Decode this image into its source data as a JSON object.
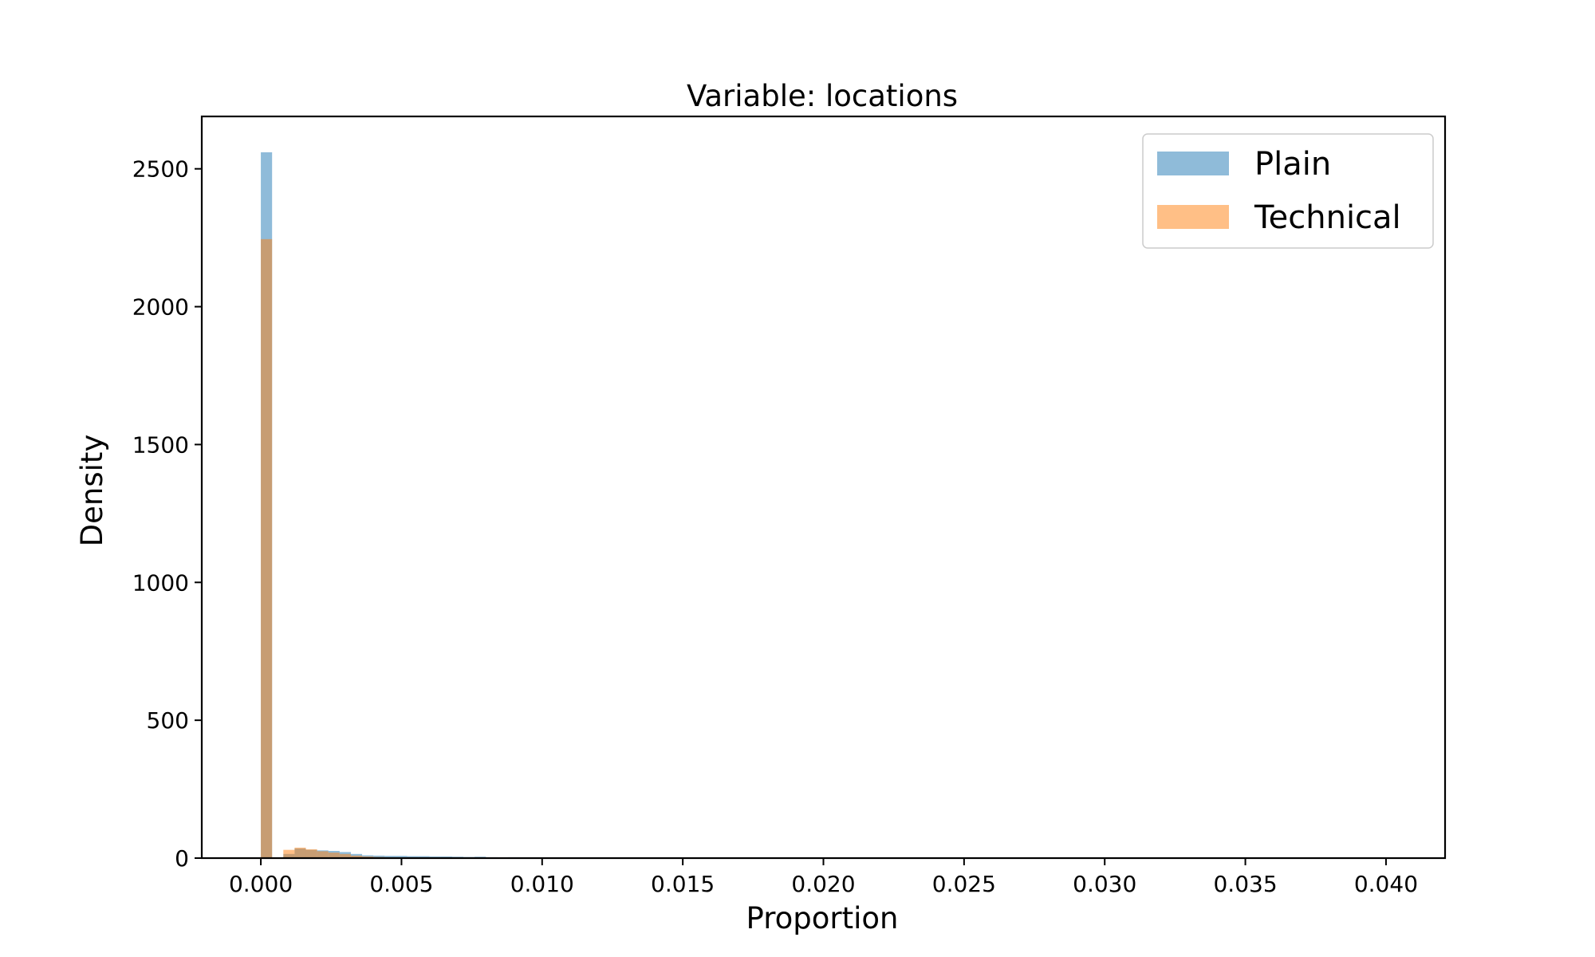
{
  "chart_data": {
    "type": "histogram",
    "title": "Variable: locations",
    "xlabel": "Proportion",
    "ylabel": "Density",
    "xlim": [
      -0.0021,
      0.0421
    ],
    "ylim": [
      0,
      2690
    ],
    "xticks": [
      0.0,
      0.005,
      0.01,
      0.015,
      0.02,
      0.025,
      0.03,
      0.035,
      0.04
    ],
    "xtick_labels": [
      "0.000",
      "0.005",
      "0.010",
      "0.015",
      "0.020",
      "0.025",
      "0.030",
      "0.035",
      "0.040"
    ],
    "yticks": [
      0,
      500,
      1000,
      1500,
      2000,
      2500
    ],
    "ytick_labels": [
      "0",
      "500",
      "1000",
      "1500",
      "2000",
      "2500"
    ],
    "grid": false,
    "legend_position": "top-right",
    "series": [
      {
        "name": "Plain",
        "color": "#1f77b4",
        "opacity": 0.5,
        "bins": [
          {
            "x0": 0.0,
            "x1": 0.0004,
            "value": 2560
          },
          {
            "x0": 0.0004,
            "x1": 0.0008,
            "value": 2
          },
          {
            "x0": 0.0008,
            "x1": 0.0012,
            "value": 15
          },
          {
            "x0": 0.0012,
            "x1": 0.0016,
            "value": 35
          },
          {
            "x0": 0.0016,
            "x1": 0.002,
            "value": 30
          },
          {
            "x0": 0.002,
            "x1": 0.0024,
            "value": 28
          },
          {
            "x0": 0.0024,
            "x1": 0.0028,
            "value": 26
          },
          {
            "x0": 0.0028,
            "x1": 0.0032,
            "value": 22
          },
          {
            "x0": 0.0032,
            "x1": 0.0036,
            "value": 15
          },
          {
            "x0": 0.0036,
            "x1": 0.004,
            "value": 10
          },
          {
            "x0": 0.004,
            "x1": 0.0044,
            "value": 9
          },
          {
            "x0": 0.0044,
            "x1": 0.0048,
            "value": 8
          },
          {
            "x0": 0.0048,
            "x1": 0.0052,
            "value": 8
          },
          {
            "x0": 0.0052,
            "x1": 0.0056,
            "value": 7
          },
          {
            "x0": 0.0056,
            "x1": 0.006,
            "value": 7
          },
          {
            "x0": 0.006,
            "x1": 0.0064,
            "value": 6
          },
          {
            "x0": 0.0064,
            "x1": 0.0068,
            "value": 6
          },
          {
            "x0": 0.0068,
            "x1": 0.0072,
            "value": 5
          },
          {
            "x0": 0.0072,
            "x1": 0.0076,
            "value": 4
          },
          {
            "x0": 0.0076,
            "x1": 0.008,
            "value": 5
          },
          {
            "x0": 0.008,
            "x1": 0.0084,
            "value": 3
          },
          {
            "x0": 0.0084,
            "x1": 0.0088,
            "value": 2
          },
          {
            "x0": 0.0088,
            "x1": 0.0092,
            "value": 3
          },
          {
            "x0": 0.0092,
            "x1": 0.0096,
            "value": 2
          },
          {
            "x0": 0.0096,
            "x1": 0.01,
            "value": 1
          },
          {
            "x0": 0.01,
            "x1": 0.0104,
            "value": 2
          }
        ]
      },
      {
        "name": "Technical",
        "color": "#ff7f0e",
        "opacity": 0.5,
        "bins": [
          {
            "x0": 0.0,
            "x1": 0.0004,
            "value": 2245
          },
          {
            "x0": 0.0008,
            "x1": 0.0012,
            "value": 30
          },
          {
            "x0": 0.0012,
            "x1": 0.0016,
            "value": 38
          },
          {
            "x0": 0.0016,
            "x1": 0.002,
            "value": 32
          },
          {
            "x0": 0.002,
            "x1": 0.0024,
            "value": 25
          },
          {
            "x0": 0.0024,
            "x1": 0.0028,
            "value": 20
          },
          {
            "x0": 0.0028,
            "x1": 0.0032,
            "value": 15
          },
          {
            "x0": 0.0032,
            "x1": 0.0036,
            "value": 9
          },
          {
            "x0": 0.0036,
            "x1": 0.004,
            "value": 6
          },
          {
            "x0": 0.004,
            "x1": 0.0044,
            "value": 4
          },
          {
            "x0": 0.0044,
            "x1": 0.0048,
            "value": 3
          },
          {
            "x0": 0.0048,
            "x1": 0.0052,
            "value": 2
          },
          {
            "x0": 0.0052,
            "x1": 0.0056,
            "value": 2
          },
          {
            "x0": 0.0056,
            "x1": 0.006,
            "value": 1
          }
        ]
      }
    ]
  }
}
